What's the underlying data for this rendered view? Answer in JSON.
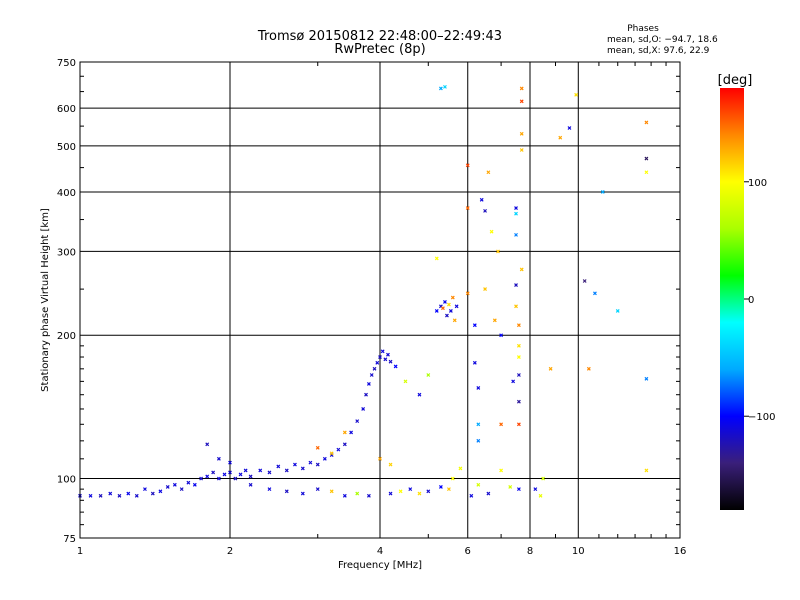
{
  "chart_data": {
    "type": "scatter",
    "title": "Tromsø 20150812 22:48:00–22:49:43",
    "subtitle": "RwPretec (8p)",
    "xlabel": "Frequency [MHz]",
    "ylabel": "Stationary phase Virtual Height [km]",
    "x_scale": "log",
    "y_scale": "log",
    "xlim": [
      1,
      16
    ],
    "ylim": [
      75,
      750
    ],
    "x_ticks": [
      1,
      2,
      4,
      6,
      8,
      10,
      16
    ],
    "x_tick_labels": [
      "1",
      "2",
      "4",
      "6",
      "8",
      "10",
      "16"
    ],
    "y_ticks": [
      75,
      100,
      200,
      300,
      400,
      500,
      600,
      750
    ],
    "y_tick_labels": [
      "75",
      "100",
      "200",
      "300",
      "400",
      "500",
      "600",
      "750"
    ],
    "grid": true,
    "phase_header": "Phases",
    "phase_stats": [
      "mean, sd,O: −94.7, 18.6",
      "mean, sd,X:  97.6, 22.9"
    ],
    "colorbar": {
      "label": "[deg]",
      "min": -180,
      "max": 180,
      "ticks": [
        100,
        0,
        -100
      ],
      "tick_labels": [
        "100",
        "0",
        "−100"
      ],
      "colors": [
        "#000000",
        "#3a1f7a",
        "#0000ff",
        "#00aaff",
        "#00ffff",
        "#00ff00",
        "#aaff00",
        "#ffff00",
        "#ff8800",
        "#ff0000"
      ]
    },
    "series": [
      {
        "values": [
          [
            1.0,
            92,
            -115
          ],
          [
            1.05,
            92,
            -110
          ],
          [
            1.1,
            92,
            -120
          ],
          [
            1.15,
            93,
            -112
          ],
          [
            1.2,
            92,
            -118
          ],
          [
            1.25,
            93,
            -105
          ],
          [
            1.3,
            92,
            -115
          ],
          [
            1.35,
            95,
            -110
          ],
          [
            1.4,
            93,
            -120
          ],
          [
            1.45,
            94,
            -108
          ],
          [
            1.5,
            96,
            -115
          ],
          [
            1.55,
            97,
            -110
          ],
          [
            1.6,
            95,
            -118
          ],
          [
            1.65,
            98,
            -112
          ],
          [
            1.7,
            97,
            -105
          ],
          [
            1.75,
            100,
            -115
          ],
          [
            1.8,
            101,
            -110
          ],
          [
            1.85,
            103,
            -118
          ],
          [
            1.9,
            100,
            -112
          ],
          [
            1.95,
            102,
            -108
          ],
          [
            2.0,
            103,
            -115
          ],
          [
            2.05,
            100,
            -120
          ],
          [
            2.1,
            102,
            -110
          ],
          [
            2.15,
            104,
            -112
          ],
          [
            2.2,
            101,
            -118
          ],
          [
            2.3,
            104,
            -110
          ],
          [
            2.4,
            103,
            -115
          ],
          [
            2.5,
            106,
            -112
          ],
          [
            2.6,
            104,
            -118
          ],
          [
            2.7,
            107,
            -110
          ],
          [
            2.8,
            105,
            -115
          ],
          [
            2.9,
            108,
            -112
          ],
          [
            3.0,
            107,
            -118
          ],
          [
            3.1,
            110,
            -110
          ],
          [
            3.2,
            112,
            -115
          ],
          [
            3.3,
            115,
            -112
          ],
          [
            3.4,
            118,
            -118
          ],
          [
            3.5,
            125,
            -110
          ],
          [
            3.6,
            132,
            -115
          ],
          [
            3.7,
            140,
            -112
          ],
          [
            3.75,
            150,
            -118
          ],
          [
            3.8,
            158,
            -110
          ],
          [
            3.85,
            165,
            -115
          ],
          [
            3.9,
            170,
            -120
          ],
          [
            3.95,
            175,
            -112
          ],
          [
            4.0,
            180,
            -118
          ],
          [
            4.05,
            185,
            -110
          ],
          [
            4.1,
            178,
            -115
          ],
          [
            4.15,
            182,
            -112
          ],
          [
            4.2,
            176,
            -118
          ],
          [
            4.3,
            172,
            -100
          ],
          [
            4.5,
            160,
            80
          ],
          [
            4.8,
            150,
            -110
          ],
          [
            5.0,
            165,
            60
          ],
          [
            5.2,
            225,
            -100
          ],
          [
            5.3,
            230,
            -115
          ],
          [
            5.35,
            228,
            150
          ],
          [
            5.4,
            235,
            -105
          ],
          [
            5.45,
            220,
            -118
          ],
          [
            5.5,
            232,
            110
          ],
          [
            5.55,
            225,
            -112
          ],
          [
            5.6,
            240,
            140
          ],
          [
            5.65,
            215,
            130
          ],
          [
            5.7,
            230,
            -110
          ],
          [
            5.2,
            290,
            100
          ],
          [
            5.3,
            660,
            -60
          ],
          [
            5.4,
            665,
            -40
          ],
          [
            1.8,
            118,
            -120
          ],
          [
            1.9,
            110,
            -115
          ],
          [
            2.0,
            108,
            -110
          ],
          [
            2.2,
            97,
            -115
          ],
          [
            2.4,
            95,
            -110
          ],
          [
            2.6,
            94,
            -118
          ],
          [
            2.8,
            93,
            -112
          ],
          [
            3.0,
            95,
            -115
          ],
          [
            3.2,
            94,
            120
          ],
          [
            3.4,
            92,
            -110
          ],
          [
            3.6,
            93,
            60
          ],
          [
            3.8,
            92,
            -115
          ],
          [
            4.2,
            93,
            -112
          ],
          [
            4.4,
            94,
            100
          ],
          [
            4.6,
            95,
            -110
          ],
          [
            4.8,
            93,
            110
          ],
          [
            5.0,
            94,
            -115
          ],
          [
            5.3,
            96,
            -100
          ],
          [
            5.5,
            95,
            120
          ],
          [
            5.6,
            100,
            100
          ],
          [
            5.8,
            105,
            95
          ],
          [
            6.1,
            92,
            -110
          ],
          [
            6.3,
            97,
            80
          ],
          [
            6.6,
            93,
            -115
          ],
          [
            7.0,
            104,
            100
          ],
          [
            7.3,
            96,
            80
          ],
          [
            7.6,
            95,
            -105
          ],
          [
            8.2,
            95,
            -110
          ],
          [
            8.4,
            92,
            90
          ],
          [
            8.5,
            100,
            80
          ],
          [
            3.0,
            116,
            150
          ],
          [
            3.2,
            113,
            120
          ],
          [
            3.4,
            125,
            130
          ],
          [
            4.0,
            110,
            130
          ],
          [
            4.2,
            107,
            115
          ],
          [
            6.0,
            455,
            160
          ],
          [
            6.0,
            370,
            150
          ],
          [
            6.0,
            245,
            140
          ],
          [
            6.2,
            210,
            -100
          ],
          [
            6.2,
            175,
            -110
          ],
          [
            6.3,
            155,
            -110
          ],
          [
            6.3,
            130,
            -60
          ],
          [
            6.3,
            120,
            -70
          ],
          [
            6.4,
            385,
            -110
          ],
          [
            6.5,
            365,
            -120
          ],
          [
            6.5,
            250,
            120
          ],
          [
            6.6,
            440,
            130
          ],
          [
            6.7,
            330,
            100
          ],
          [
            6.8,
            215,
            130
          ],
          [
            6.9,
            300,
            120
          ],
          [
            7.0,
            200,
            -100
          ],
          [
            7.0,
            130,
            150
          ],
          [
            7.4,
            160,
            -110
          ],
          [
            7.5,
            370,
            -110
          ],
          [
            7.5,
            360,
            -40
          ],
          [
            7.5,
            325,
            -70
          ],
          [
            7.5,
            255,
            -120
          ],
          [
            7.5,
            230,
            120
          ],
          [
            7.6,
            210,
            140
          ],
          [
            7.6,
            190,
            110
          ],
          [
            7.6,
            180,
            100
          ],
          [
            7.6,
            165,
            -120
          ],
          [
            7.6,
            145,
            -130
          ],
          [
            7.6,
            130,
            160
          ],
          [
            7.7,
            660,
            140
          ],
          [
            7.7,
            620,
            160
          ],
          [
            7.7,
            530,
            130
          ],
          [
            7.7,
            490,
            120
          ],
          [
            7.7,
            275,
            120
          ],
          [
            8.8,
            170,
            130
          ],
          [
            9.2,
            520,
            130
          ],
          [
            9.6,
            545,
            -110
          ],
          [
            9.9,
            640,
            110
          ],
          [
            10.5,
            170,
            140
          ],
          [
            10.3,
            260,
            -140
          ],
          [
            10.8,
            245,
            -70
          ],
          [
            11.2,
            400,
            -60
          ],
          [
            12.0,
            225,
            -40
          ],
          [
            13.7,
            560,
            140
          ],
          [
            13.7,
            470,
            -150
          ],
          [
            13.7,
            440,
            100
          ],
          [
            13.7,
            162,
            -70
          ],
          [
            13.7,
            104,
            110
          ]
        ]
      }
    ]
  }
}
